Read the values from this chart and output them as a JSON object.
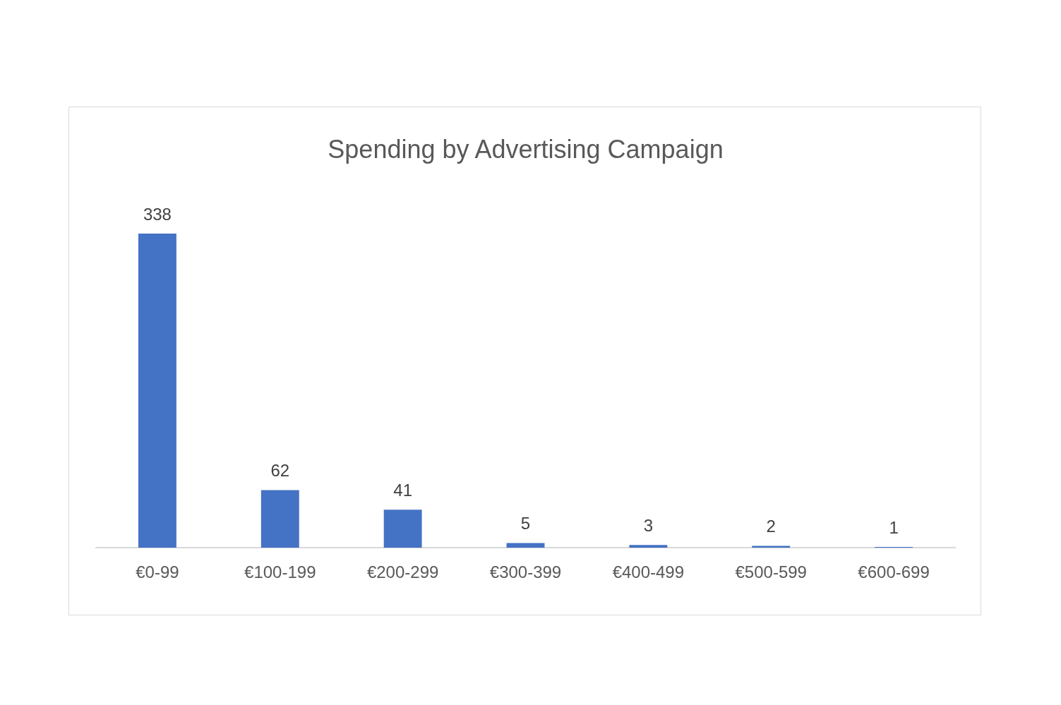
{
  "chart_data": {
    "type": "bar",
    "title": "Spending by Advertising Campaign",
    "categories": [
      "€0-99",
      "€100-199",
      "€200-299",
      "€300-399",
      "€400-499",
      "€500-599",
      "€600-699"
    ],
    "values": [
      338,
      62,
      41,
      5,
      3,
      2,
      1
    ],
    "color": "#4472c4",
    "data_labels": true,
    "grid": false,
    "legend": false,
    "tick_labels": "x"
  }
}
